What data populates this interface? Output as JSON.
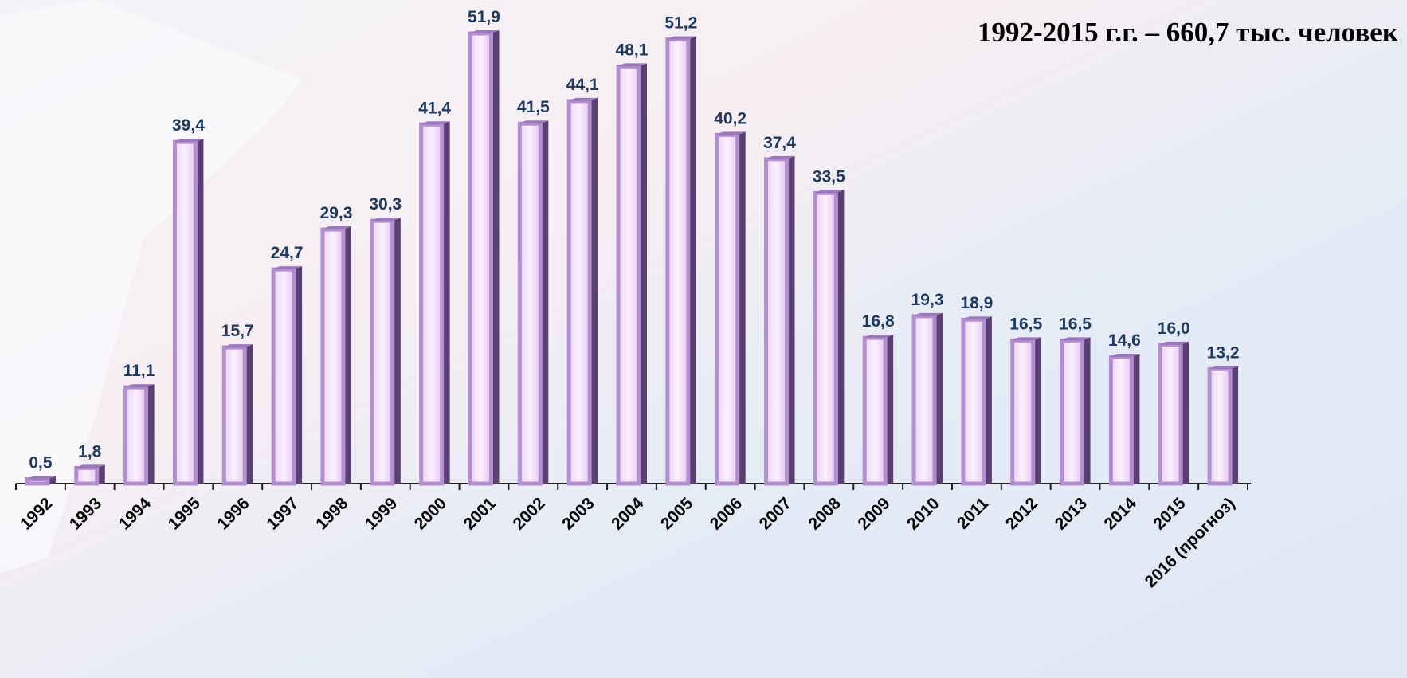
{
  "chart_data": {
    "type": "bar",
    "title": "1992-2015 г.г.  – 660,7 тыс. человек",
    "categories": [
      "1992",
      "1993",
      "1994",
      "1995",
      "1996",
      "1997",
      "1998",
      "1999",
      "2000",
      "2001",
      "2002",
      "2003",
      "2004",
      "2005",
      "2006",
      "2007",
      "2008",
      "2009",
      "2010",
      "2011",
      "2012",
      "2013",
      "2014",
      "2015",
      "2016 (прогноз)"
    ],
    "values": [
      0.5,
      1.8,
      11.1,
      39.4,
      15.7,
      24.7,
      29.3,
      30.3,
      41.4,
      51.9,
      41.5,
      44.1,
      48.1,
      51.2,
      40.2,
      37.4,
      33.5,
      16.8,
      19.3,
      18.9,
      16.5,
      16.5,
      14.6,
      16.0,
      13.2
    ],
    "value_labels": [
      "0,5",
      "1,8",
      "11,1",
      "39,4",
      "15,7",
      "24,7",
      "29,3",
      "30,3",
      "41,4",
      "51,9",
      "41,5",
      "44,1",
      "48,1",
      "51,2",
      "40,2",
      "37,4",
      "33,5",
      "16,8",
      "19,3",
      "18,9",
      "16,5",
      "16,5",
      "14,6",
      "16,0",
      "13,2"
    ],
    "color": "#b48fd0"
  }
}
